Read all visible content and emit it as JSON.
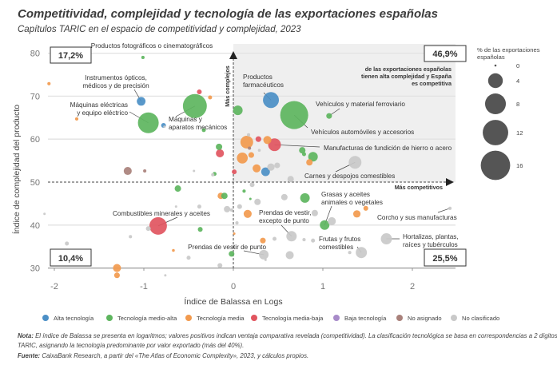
{
  "title": "Competitividad, complejidad y tecnología de las exportaciones españolas",
  "subtitle": "Capítulos TARIC en el espacio de competitividad y complejidad, 2023",
  "chart_data": {
    "type": "scatter",
    "xlabel": "Índice de Balassa en Logs",
    "ylabel": "Índice de complejidad del producto",
    "xlim": [
      -2.2,
      2.5
    ],
    "ylim": [
      30,
      82
    ],
    "xticks": [
      "-2",
      "-1",
      "0",
      "1",
      "2"
    ],
    "yticks": [
      "30",
      "40",
      "50",
      "60",
      "70",
      "80"
    ],
    "grid": "horizontal",
    "reference_lines": {
      "x": 0,
      "y": 50
    },
    "axis_arrows": {
      "y": "Más complejos",
      "x": "Más competitivos"
    },
    "quadrants": {
      "top_left": "17,2%",
      "top_right": "46,9%",
      "bottom_left": "10,4%",
      "bottom_right": "25,5%",
      "top_right_note": [
        "de las exportaciones españolas",
        "tienen alta complejidad y España",
        "es competitiva"
      ]
    },
    "size_legend": {
      "title": [
        "% de las exportaciones",
        "españolas"
      ],
      "values": [
        "0",
        "4",
        "8",
        "12",
        "16"
      ]
    },
    "categories": [
      {
        "name": "Alta tecnología",
        "color": "#4b8fc6"
      },
      {
        "name": "Tecnología medio-alta",
        "color": "#5db55e"
      },
      {
        "name": "Tecnología media",
        "color": "#f29a4e"
      },
      {
        "name": "Tecnología media-baja",
        "color": "#e1555f"
      },
      {
        "name": "Baja tecnología",
        "color": "#a88bc9"
      },
      {
        "name": "No asignado",
        "color": "#a9817b"
      },
      {
        "name": "No clasificado",
        "color": "#c9c9c9"
      }
    ],
    "points": [
      {
        "x": -1.01,
        "y": 79.0,
        "size": 0.2,
        "cat": 1,
        "label": [
          "Productos fotográficos o cinematográficos"
        ]
      },
      {
        "x": -1.03,
        "y": 68.8,
        "size": 1.4,
        "cat": 0,
        "label": [
          "Instrumentos ópticos,",
          "médicos y de precisión"
        ]
      },
      {
        "x": -0.95,
        "y": 63.8,
        "size": 8.0,
        "cat": 1,
        "label": [
          "Máquinas eléctricas",
          "y equipo eléctrico"
        ]
      },
      {
        "x": -0.43,
        "y": 67.7,
        "size": 10.6,
        "cat": 1,
        "label": [
          "Máquinas y",
          "aparatos mecánicos"
        ]
      },
      {
        "x": 0.42,
        "y": 69.1,
        "size": 4.7,
        "cat": 0,
        "label": [
          "Productos",
          "farmacéuticos"
        ]
      },
      {
        "x": 1.07,
        "y": 65.4,
        "size": 0.6,
        "cat": 1,
        "label": [
          "Vehículos y material ferroviario"
        ]
      },
      {
        "x": 0.68,
        "y": 65.6,
        "size": 14.5,
        "cat": 1,
        "label": [
          "Vehículos automóviles y accesorios"
        ]
      },
      {
        "x": 0.46,
        "y": 58.7,
        "size": 3.0,
        "cat": 3,
        "label": [
          "Manufacturas de fundición de hierro o acero"
        ]
      },
      {
        "x": 1.36,
        "y": 54.6,
        "size": 3.0,
        "cat": 6,
        "label": [
          "Carnes y despojos comestibles"
        ]
      },
      {
        "x": -0.84,
        "y": 39.8,
        "size": 5.7,
        "cat": 3,
        "label": [
          "Combustibles minerales y aceites"
        ]
      },
      {
        "x": 1.02,
        "y": 40.0,
        "size": 1.7,
        "cat": 1,
        "label": [
          "Grasas y aceites",
          "animales o vegetales"
        ]
      },
      {
        "x": 2.42,
        "y": 43.9,
        "size": 0.2,
        "cat": 6,
        "label": [
          "Corcho y sus manufacturas"
        ]
      },
      {
        "x": 0.65,
        "y": 37.4,
        "size": 2.0,
        "cat": 6,
        "label": [
          "Prendas de vestir,",
          "excepto de punto"
        ]
      },
      {
        "x": 1.43,
        "y": 33.6,
        "size": 2.3,
        "cat": 6,
        "label": [
          "Frutas y frutos",
          "comestibles"
        ]
      },
      {
        "x": 1.71,
        "y": 36.8,
        "size": 2.3,
        "cat": 6,
        "label": [
          "Hortalizas, plantas,",
          "raíces y tubérculos"
        ]
      },
      {
        "x": 0.34,
        "y": 33.1,
        "size": 1.7,
        "cat": 6,
        "label": [
          "Prendas de vestir de punto"
        ]
      },
      {
        "x": -2.06,
        "y": 72.9,
        "size": 0.2,
        "cat": 2
      },
      {
        "x": -0.38,
        "y": 71.0,
        "size": 0.43,
        "cat": 3
      },
      {
        "x": -0.26,
        "y": 69.7,
        "size": 0.3,
        "cat": 2
      },
      {
        "x": -1.75,
        "y": 64.7,
        "size": 0.2,
        "cat": 2
      },
      {
        "x": -0.78,
        "y": 63.2,
        "size": 0.43,
        "cat": 0
      },
      {
        "x": -0.77,
        "y": 62.9,
        "size": 0.1,
        "cat": 6
      },
      {
        "x": -0.33,
        "y": 62.1,
        "size": 0.3,
        "cat": 1
      },
      {
        "x": -0.16,
        "y": 58.2,
        "size": 0.76,
        "cat": 1
      },
      {
        "x": -0.15,
        "y": 56.7,
        "size": 1.2,
        "cat": 3
      },
      {
        "x": -1.18,
        "y": 52.6,
        "size": 1.2,
        "cat": 5
      },
      {
        "x": -0.99,
        "y": 52.6,
        "size": 0.2,
        "cat": 5
      },
      {
        "x": -0.44,
        "y": 52.6,
        "size": 0.1,
        "cat": 6
      },
      {
        "x": -0.23,
        "y": 51.7,
        "size": 0.2,
        "cat": 6
      },
      {
        "x": -0.21,
        "y": 51.9,
        "size": 0.3,
        "cat": 1
      },
      {
        "x": -0.62,
        "y": 48.5,
        "size": 0.76,
        "cat": 1
      },
      {
        "x": -0.14,
        "y": 46.8,
        "size": 0.76,
        "cat": 2
      },
      {
        "x": -0.1,
        "y": 46.8,
        "size": 0.76,
        "cat": 1
      },
      {
        "x": -0.64,
        "y": 44.3,
        "size": 0.1,
        "cat": 6
      },
      {
        "x": -0.38,
        "y": 44.3,
        "size": 0.3,
        "cat": 6
      },
      {
        "x": -0.07,
        "y": 43.7,
        "size": 0.76,
        "cat": 6
      },
      {
        "x": -0.95,
        "y": 39.2,
        "size": 0.43,
        "cat": 6
      },
      {
        "x": -0.37,
        "y": 39.0,
        "size": 0.43,
        "cat": 1
      },
      {
        "x": -1.15,
        "y": 37.3,
        "size": 0.2,
        "cat": 6
      },
      {
        "x": -2.11,
        "y": 42.6,
        "size": 0.1,
        "cat": 6
      },
      {
        "x": -1.86,
        "y": 35.7,
        "size": 0.3,
        "cat": 6
      },
      {
        "x": -0.67,
        "y": 34.1,
        "size": 0.15,
        "cat": 2
      },
      {
        "x": -0.5,
        "y": 32.4,
        "size": 0.3,
        "cat": 6
      },
      {
        "x": -1.3,
        "y": 30.0,
        "size": 1.2,
        "cat": 2
      },
      {
        "x": -1.3,
        "y": 28.3,
        "size": 0.6,
        "cat": 2
      },
      {
        "x": -0.76,
        "y": 28.3,
        "size": 0.05,
        "cat": 6
      },
      {
        "x": -0.02,
        "y": 33.3,
        "size": 0.6,
        "cat": 1
      },
      {
        "x": -0.15,
        "y": 30.6,
        "size": 0.43,
        "cat": 6
      },
      {
        "x": 0.01,
        "y": 38.0,
        "size": 0.1,
        "cat": 2
      },
      {
        "x": 0.04,
        "y": 40.5,
        "size": 0.2,
        "cat": 6
      },
      {
        "x": 0.05,
        "y": 66.7,
        "size": 1.7,
        "cat": 1
      },
      {
        "x": 0.15,
        "y": 59.3,
        "size": 3.0,
        "cat": 2
      },
      {
        "x": 0.28,
        "y": 60.0,
        "size": 0.6,
        "cat": 3
      },
      {
        "x": 0.38,
        "y": 59.8,
        "size": 1.2,
        "cat": 2
      },
      {
        "x": 0.17,
        "y": 61.0,
        "size": 0.2,
        "cat": 6
      },
      {
        "x": 0.18,
        "y": 57.9,
        "size": 0.2,
        "cat": 5
      },
      {
        "x": 0.29,
        "y": 57.4,
        "size": 0.15,
        "cat": 6
      },
      {
        "x": 0.1,
        "y": 55.6,
        "size": 2.2,
        "cat": 2
      },
      {
        "x": 0.2,
        "y": 56.3,
        "size": 0.6,
        "cat": 2
      },
      {
        "x": 0.77,
        "y": 57.4,
        "size": 0.76,
        "cat": 1
      },
      {
        "x": 0.79,
        "y": 56.5,
        "size": 0.3,
        "cat": 1
      },
      {
        "x": 0.89,
        "y": 55.9,
        "size": 1.7,
        "cat": 1
      },
      {
        "x": 0.85,
        "y": 54.6,
        "size": 0.76,
        "cat": 2
      },
      {
        "x": 0.26,
        "y": 53.2,
        "size": 1.2,
        "cat": 2
      },
      {
        "x": 0.36,
        "y": 52.4,
        "size": 1.4,
        "cat": 0
      },
      {
        "x": 0.42,
        "y": 53.5,
        "size": 1.0,
        "cat": 6
      },
      {
        "x": 0.49,
        "y": 53.9,
        "size": 0.6,
        "cat": 6
      },
      {
        "x": 0.01,
        "y": 52.4,
        "size": 0.43,
        "cat": 3
      },
      {
        "x": 0.64,
        "y": 50.7,
        "size": 0.76,
        "cat": 6
      },
      {
        "x": 0.21,
        "y": 49.4,
        "size": 0.43,
        "cat": 6
      },
      {
        "x": 0.12,
        "y": 47.9,
        "size": 0.2,
        "cat": 1
      },
      {
        "x": 0.19,
        "y": 46.1,
        "size": 0.1,
        "cat": 1
      },
      {
        "x": 0.57,
        "y": 46.5,
        "size": 0.76,
        "cat": 6
      },
      {
        "x": 0.8,
        "y": 46.3,
        "size": 1.7,
        "cat": 1
      },
      {
        "x": 1.38,
        "y": 42.6,
        "size": 1.0,
        "cat": 2
      },
      {
        "x": 1.48,
        "y": 43.9,
        "size": 0.43,
        "cat": 2
      },
      {
        "x": 1.1,
        "y": 40.9,
        "size": 1.2,
        "cat": 6
      },
      {
        "x": 0.91,
        "y": 42.8,
        "size": 0.76,
        "cat": 6
      },
      {
        "x": 0.16,
        "y": 42.6,
        "size": 1.2,
        "cat": 2
      },
      {
        "x": 0.27,
        "y": 45.4,
        "size": 0.76,
        "cat": 6
      },
      {
        "x": 0.07,
        "y": 44.3,
        "size": 0.43,
        "cat": 6
      },
      {
        "x": -0.02,
        "y": 43.5,
        "size": 0.2,
        "cat": 6
      },
      {
        "x": 0.79,
        "y": 36.6,
        "size": 0.2,
        "cat": 6
      },
      {
        "x": 0.46,
        "y": 36.8,
        "size": 0.3,
        "cat": 6
      },
      {
        "x": 0.89,
        "y": 36.4,
        "size": 0.3,
        "cat": 6
      },
      {
        "x": 0.33,
        "y": 36.4,
        "size": 0.6,
        "cat": 2
      },
      {
        "x": 1.3,
        "y": 33.6,
        "size": 0.2,
        "cat": 6
      },
      {
        "x": 0.63,
        "y": 33.0,
        "size": 1.2,
        "cat": 6
      },
      {
        "x": 0.36,
        "y": 31.9,
        "size": 0.1,
        "cat": 6
      }
    ]
  },
  "legend": [
    "Alta tecnología",
    "Tecnología medio-alta",
    "Tecnología media",
    "Tecnología media-baja",
    "Baja tecnología",
    "No asignado",
    "No clasificado"
  ],
  "notes": {
    "note_label": "Nota:",
    "note_line1": " El índice de Balassa se presenta en logaritmos; valores positivos indican ventaja comparativa revelada (competitividad). La clasificación tecnológica se basa en correspondencias a 2 dígitos",
    "note_line2": "TARIC, asignando la tecnología predominante por valor exportado (más del 40%).",
    "source_label": "Fuente:",
    "source_text": " CaixaBank Research, a partir del «The Atlas of Economic Complexity», 2023, y cálculos propios."
  }
}
